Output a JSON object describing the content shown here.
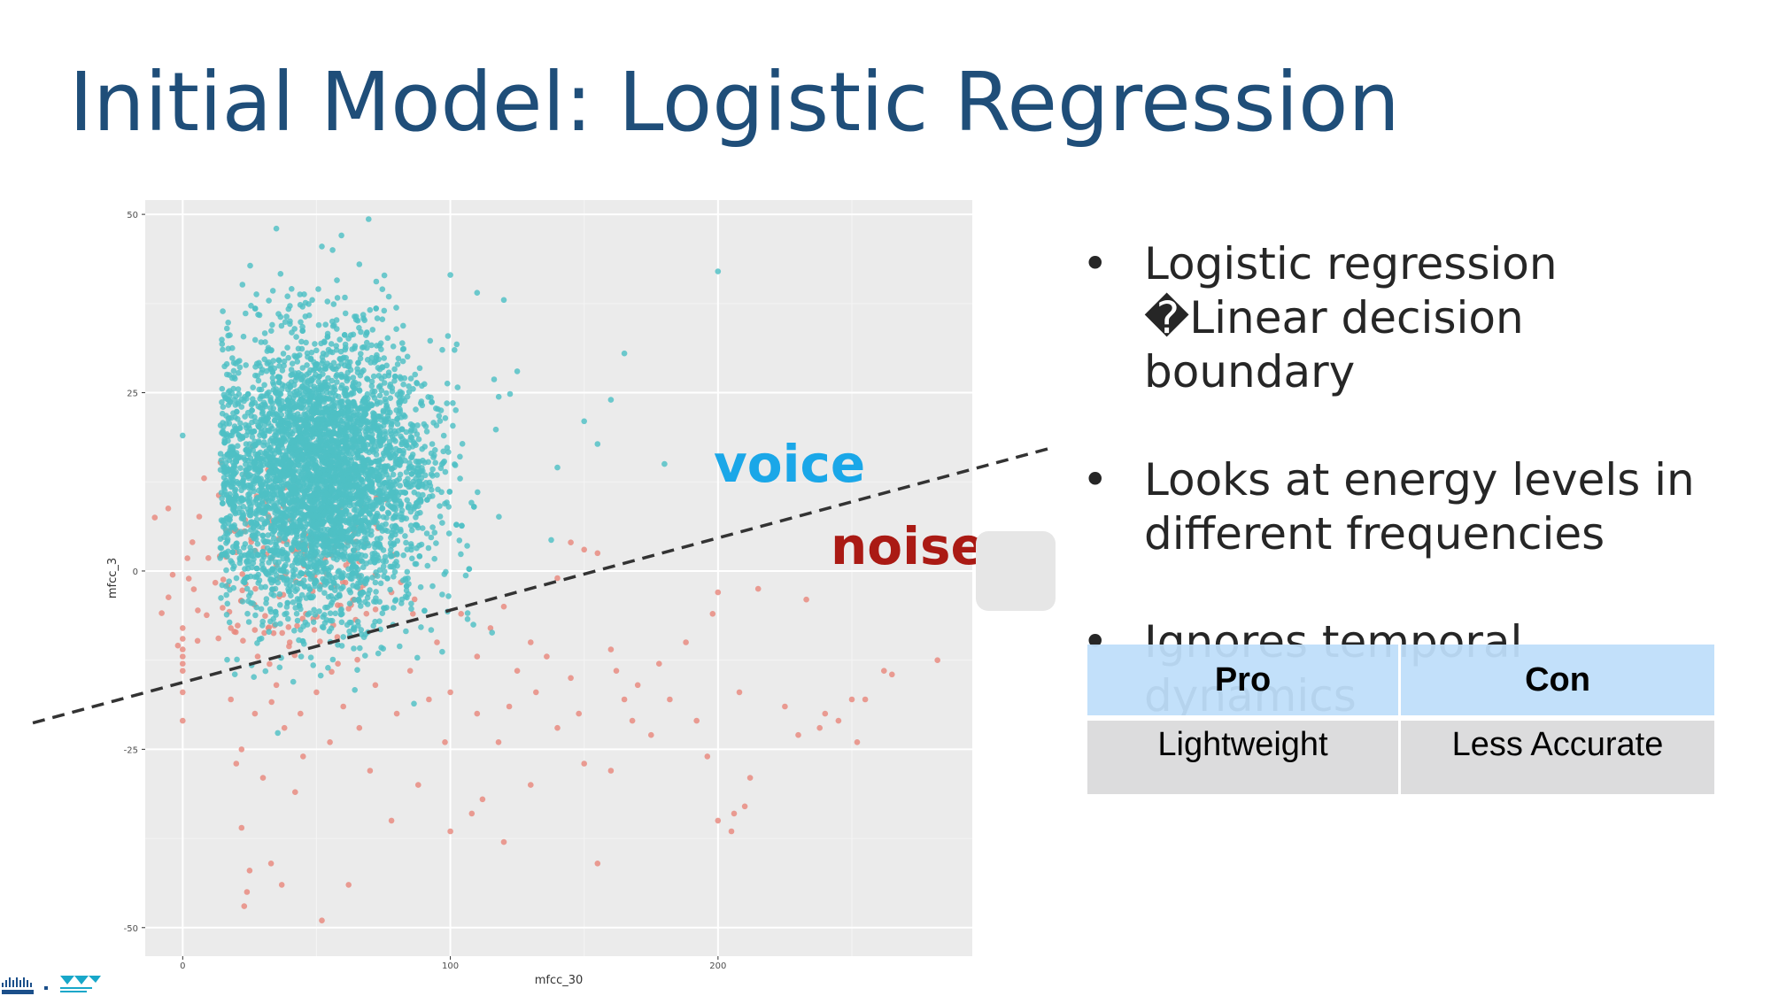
{
  "slide": {
    "title": "Initial Model: Logistic Regression",
    "label_voice": "voice",
    "label_noise": "noise"
  },
  "bullets": [
    {
      "text": "Logistic regression �Linear decision boundary"
    },
    {
      "text": "Looks at energy levels in different frequencies"
    },
    {
      "text": "Ignores temporal dynamics"
    }
  ],
  "table": {
    "headers": [
      "Pro",
      "Con"
    ],
    "rows": [
      [
        "Lightweight",
        "Less Accurate"
      ]
    ]
  },
  "colors": {
    "title": "#1f4e79",
    "voice_points": "#4ebfc4",
    "noise_points": "#e8877c",
    "voice_label": "#1aa7e8",
    "noise_label": "#aa1a14",
    "panel_bg": "#ebebeb"
  },
  "chart_data": {
    "type": "scatter",
    "xlabel": "mfcc_30",
    "ylabel": "mfcc_3",
    "xlim": [
      -14,
      295
    ],
    "ylim": [
      -54,
      52
    ],
    "xticks": [
      0,
      100,
      200
    ],
    "yticks": [
      -50,
      -25,
      0,
      25,
      50
    ],
    "grid": true,
    "decision_boundary": {
      "x": [
        -56,
        324
      ],
      "y": [
        -21.3,
        17.2
      ]
    },
    "series": [
      {
        "name": "voice",
        "cluster": {
          "x_mean": 52,
          "x_sd": 20,
          "y_mean": 13,
          "y_sd": 9.5,
          "count": 4200
        },
        "outliers": [
          [
            35,
            48
          ],
          [
            52,
            45.5
          ],
          [
            56,
            45
          ],
          [
            66,
            43
          ],
          [
            200,
            42
          ],
          [
            100,
            41.5
          ],
          [
            120,
            38
          ],
          [
            110,
            39
          ],
          [
            165,
            30.5
          ],
          [
            160,
            24
          ],
          [
            180,
            15
          ],
          [
            0,
            19
          ],
          [
            150,
            21
          ],
          [
            155,
            17.8
          ],
          [
            140,
            14.5
          ],
          [
            125,
            28
          ],
          [
            97,
            31
          ]
        ]
      },
      {
        "name": "noise",
        "points": [
          [
            0,
            -8
          ],
          [
            0,
            -9.5
          ],
          [
            0,
            -11
          ],
          [
            0,
            -12
          ],
          [
            0,
            -13
          ],
          [
            0,
            -14
          ],
          [
            0,
            -17
          ],
          [
            0,
            -21
          ],
          [
            8,
            13
          ],
          [
            18,
            -8
          ],
          [
            28,
            -12
          ],
          [
            35,
            -16
          ],
          [
            40,
            -10
          ],
          [
            18,
            -18
          ],
          [
            22,
            -36
          ],
          [
            25,
            -42
          ],
          [
            24,
            -45
          ],
          [
            23,
            -47
          ],
          [
            33,
            -41
          ],
          [
            37,
            -44
          ],
          [
            52,
            -49
          ],
          [
            62,
            -44
          ],
          [
            55,
            -24
          ],
          [
            60,
            -19
          ],
          [
            45,
            -26
          ],
          [
            30,
            -29
          ],
          [
            42,
            -31
          ],
          [
            70,
            -28
          ],
          [
            78,
            -35
          ],
          [
            88,
            -30
          ],
          [
            100,
            -36.5
          ],
          [
            108,
            -34
          ],
          [
            112,
            -32
          ],
          [
            118,
            -24
          ],
          [
            122,
            -19
          ],
          [
            125,
            -14
          ],
          [
            130,
            -10
          ],
          [
            132,
            -17
          ],
          [
            136,
            -12
          ],
          [
            140,
            -22
          ],
          [
            145,
            -15
          ],
          [
            148,
            -20
          ],
          [
            150,
            -27
          ],
          [
            155,
            -41
          ],
          [
            160,
            -11
          ],
          [
            162,
            -14
          ],
          [
            165,
            -18
          ],
          [
            168,
            -21
          ],
          [
            170,
            -16
          ],
          [
            175,
            -23
          ],
          [
            178,
            -13
          ],
          [
            182,
            -18
          ],
          [
            188,
            -10
          ],
          [
            192,
            -21
          ],
          [
            196,
            -26
          ],
          [
            198,
            -6
          ],
          [
            200,
            -3
          ],
          [
            200,
            -35
          ],
          [
            205,
            -36.5
          ],
          [
            206,
            -34
          ],
          [
            208,
            -17
          ],
          [
            210,
            -33
          ],
          [
            212,
            -29
          ],
          [
            215,
            -2.5
          ],
          [
            225,
            -19
          ],
          [
            230,
            -23
          ],
          [
            233,
            -4
          ],
          [
            238,
            -22
          ],
          [
            240,
            -20
          ],
          [
            245,
            -21
          ],
          [
            250,
            -18
          ],
          [
            252,
            -24
          ],
          [
            255,
            -18
          ],
          [
            262,
            -14
          ],
          [
            265,
            -14.5
          ],
          [
            282,
            -12.5
          ],
          [
            150,
            3
          ],
          [
            155,
            2.5
          ],
          [
            120,
            -5
          ],
          [
            115,
            -8
          ],
          [
            110,
            -12
          ],
          [
            104,
            -6
          ],
          [
            95,
            -10
          ],
          [
            85,
            -14
          ],
          [
            92,
            -18
          ],
          [
            98,
            -24
          ],
          [
            80,
            -20
          ],
          [
            72,
            -16
          ],
          [
            66,
            -22
          ],
          [
            58,
            -13
          ],
          [
            50,
            -17
          ],
          [
            44,
            -20
          ],
          [
            38,
            -22
          ],
          [
            27,
            -20
          ],
          [
            22,
            -25
          ],
          [
            20,
            -27
          ],
          [
            32,
            -8
          ],
          [
            46,
            -6
          ],
          [
            64,
            -4
          ],
          [
            78,
            -3
          ],
          [
            86,
            -6
          ],
          [
            140,
            -1
          ],
          [
            145,
            4
          ],
          [
            130,
            -30
          ],
          [
            120,
            -38
          ],
          [
            160,
            -28
          ],
          [
            110,
            -20
          ],
          [
            100,
            -17
          ]
        ]
      }
    ]
  }
}
